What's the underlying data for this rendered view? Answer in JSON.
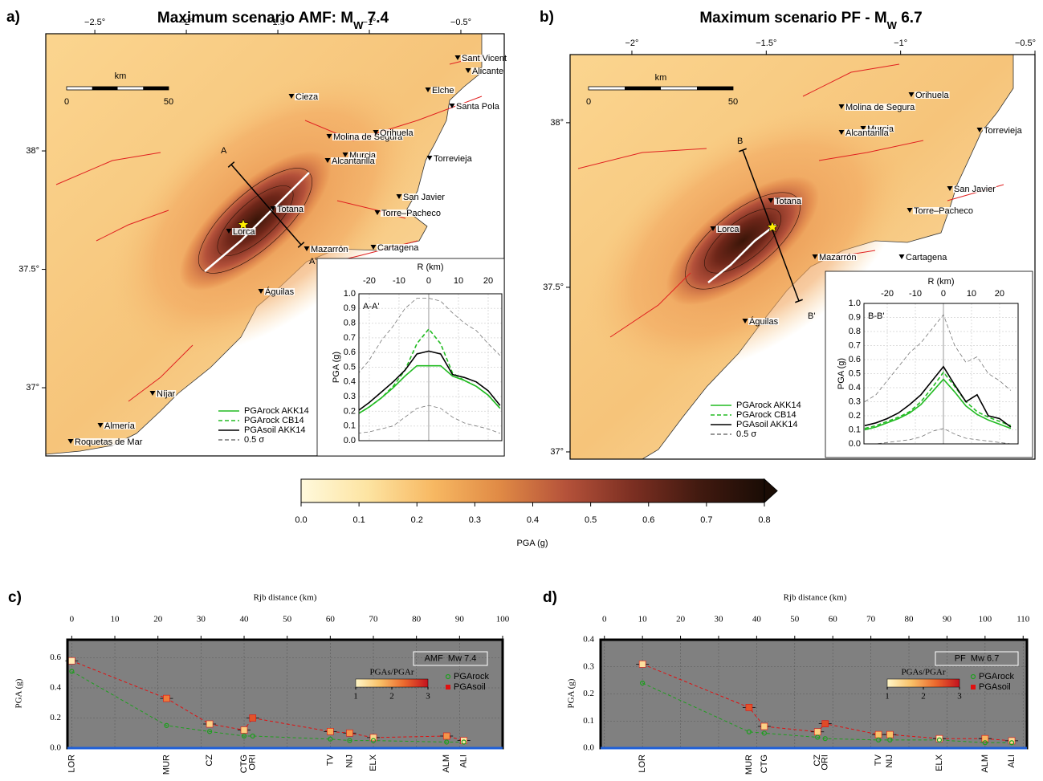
{
  "chart_data": [
    {
      "type": "map",
      "panel": "a)",
      "title": [
        "Maximum scenario AMF: M",
        "W",
        " 7.4"
      ],
      "xlim": [
        -2.768,
        -0.263
      ],
      "ylim": [
        36.712,
        38.495
      ],
      "xticks": [
        {
          "value": -2.5,
          "label": "−2.5°"
        },
        {
          "value": -2,
          "label": "−2°"
        },
        {
          "value": -1.5,
          "label": "−1.5°"
        },
        {
          "value": -1,
          "label": "−1°"
        },
        {
          "value": -0.5,
          "label": "−0.5°"
        }
      ],
      "yticks": [
        {
          "value": 38,
          "label": "38°"
        },
        {
          "value": 37.5,
          "label": "37.5°"
        },
        {
          "value": 37,
          "label": "37°"
        }
      ],
      "places": [
        "Sant Vicent",
        "Alicante",
        "Elche",
        "Santa Pola",
        "Cieza",
        "Molina de Segura",
        "Orihuela",
        "Murcia",
        "Alcantarilla",
        "Torrevieja",
        "San Javier",
        "Totana",
        "Lorca",
        "Torre–Pacheco",
        "Mazarrón",
        "Cartagena",
        "Águilas",
        "Níjar",
        "Almería",
        "Roquetas de Mar"
      ],
      "scalebar": {
        "unit": "km",
        "ticks": [
          0,
          50
        ]
      },
      "profile": [
        "A",
        "A'"
      ]
    },
    {
      "type": "line",
      "label": "A-A'",
      "xlabel": "R (km)",
      "ylabel": "PGA (g)",
      "x": [
        -24,
        -20,
        -16,
        -12,
        -8,
        -4,
        0,
        4,
        8,
        12,
        16,
        20,
        24
      ],
      "xlim": [
        -23.5,
        24.6
      ],
      "ylim": [
        0,
        1
      ],
      "xticks": [
        -20,
        -10,
        0,
        10,
        20
      ],
      "yticks": [
        {
          "value": 0,
          "label": "0.0"
        },
        0.1,
        0.2,
        0.3,
        0.4,
        0.5,
        0.6,
        0.7,
        0.8,
        0.9,
        {
          "value": 1,
          "label": "1.0"
        }
      ],
      "series": [
        {
          "name": "PGArock AKK14",
          "color": "#22bb22",
          "dashed": false,
          "values": [
            0.18,
            0.23,
            0.29,
            0.36,
            0.44,
            0.51,
            0.51,
            0.51,
            0.44,
            0.41,
            0.37,
            0.31,
            0.22
          ]
        },
        {
          "name": "PGArock CB14",
          "color": "#22bb22",
          "dashed": true,
          "values": [
            0.18,
            0.23,
            0.29,
            0.37,
            0.48,
            0.66,
            0.76,
            0.66,
            0.46,
            0.41,
            0.37,
            0.31,
            0.22
          ]
        },
        {
          "name": "PGAsoil AKK14",
          "color": "#000000",
          "dashed": false,
          "values": [
            0.2,
            0.26,
            0.33,
            0.4,
            0.48,
            0.59,
            0.61,
            0.59,
            0.45,
            0.43,
            0.4,
            0.34,
            0.24
          ]
        },
        {
          "name": "0.5 σ",
          "color": "#777777",
          "dashed": true,
          "upper": [
            0.45,
            0.55,
            0.68,
            0.78,
            0.9,
            0.97,
            0.97,
            0.95,
            0.87,
            0.8,
            0.75,
            0.66,
            0.58
          ],
          "lower": [
            0.05,
            0.06,
            0.08,
            0.1,
            0.16,
            0.22,
            0.24,
            0.22,
            0.16,
            0.12,
            0.1,
            0.08,
            0.05
          ]
        }
      ]
    },
    {
      "type": "map",
      "panel": "b)",
      "title": [
        "Maximum scenario PF - M",
        "W",
        " 6.7"
      ],
      "xlim": [
        -2.23,
        -0.5
      ],
      "ylim": [
        36.978,
        38.207
      ],
      "xticks": [
        {
          "value": -2,
          "label": "−2°"
        },
        {
          "value": -1.5,
          "label": "−1.5°"
        },
        {
          "value": -1,
          "label": "−1°"
        },
        {
          "value": -0.5,
          "label": "−0.5°"
        }
      ],
      "yticks": [
        {
          "value": 38,
          "label": "38°"
        },
        {
          "value": 37.5,
          "label": "37.5°"
        },
        {
          "value": 37,
          "label": "37°"
        }
      ],
      "places": [
        "Orihuela",
        "Molina de Segura",
        "Murcia",
        "Alcantarilla",
        "Torrevieja",
        "San Javier",
        "Totana",
        "Torre–Pacheco",
        "Lorca",
        "Mazarrón",
        "Cartagena",
        "Águilas"
      ],
      "scalebar": {
        "unit": "km",
        "ticks": [
          0,
          50
        ]
      },
      "profile": [
        "B",
        "B'"
      ]
    },
    {
      "type": "line",
      "label": "B-B'",
      "xlabel": "R (km)",
      "ylabel": "PGA (g)",
      "x": [
        -28,
        -24,
        -20,
        -16,
        -12,
        -8,
        -4,
        0,
        4,
        8,
        12,
        16,
        20,
        24
      ],
      "xlim": [
        -28.3,
        26.6
      ],
      "ylim": [
        0,
        1
      ],
      "xticks": [
        -20,
        -10,
        0,
        10,
        20
      ],
      "yticks": [
        {
          "value": 0,
          "label": "0.0"
        },
        0.1,
        0.2,
        0.3,
        0.4,
        0.5,
        0.6,
        0.7,
        0.8,
        0.9,
        {
          "value": 1,
          "label": "1.0"
        }
      ],
      "series": [
        {
          "name": "PGArock AKK14",
          "color": "#22bb22",
          "dashed": false,
          "values": [
            0.1,
            0.12,
            0.15,
            0.18,
            0.22,
            0.28,
            0.37,
            0.46,
            0.37,
            0.27,
            0.21,
            0.17,
            0.14,
            0.11
          ]
        },
        {
          "name": "PGArock CB14",
          "color": "#22bb22",
          "dashed": true,
          "values": [
            0.11,
            0.13,
            0.16,
            0.19,
            0.23,
            0.3,
            0.4,
            0.51,
            0.41,
            0.3,
            0.23,
            0.19,
            0.16,
            0.13
          ]
        },
        {
          "name": "PGAsoil AKK14",
          "color": "#000000",
          "dashed": false,
          "values": [
            0.13,
            0.15,
            0.18,
            0.22,
            0.28,
            0.35,
            0.45,
            0.55,
            0.42,
            0.3,
            0.35,
            0.2,
            0.18,
            0.12
          ]
        },
        {
          "name": "0.5 σ",
          "color": "#777777",
          "dashed": true,
          "upper": [
            0.3,
            0.35,
            0.45,
            0.55,
            0.65,
            0.72,
            0.82,
            0.92,
            0.7,
            0.58,
            0.62,
            0.5,
            0.45,
            0.38
          ],
          "lower": [
            0,
            0,
            0.01,
            0.02,
            0.03,
            0.05,
            0.09,
            0.11,
            0.07,
            0.04,
            0.03,
            0.02,
            0.01,
            0
          ]
        }
      ]
    },
    {
      "type": "colorbar",
      "label": "PGA (g)",
      "lim": [
        0,
        0.8
      ],
      "ticks": [
        {
          "value": 0,
          "label": "0.0"
        },
        0.1,
        0.2,
        0.3,
        0.4,
        0.5,
        0.6,
        0.7,
        0.8
      ],
      "colors": [
        "#fff9dc",
        "#fde4a2",
        "#f7b862",
        "#e08a45",
        "#b5523a",
        "#7c2f22",
        "#421a10",
        "#1a0c05"
      ]
    },
    {
      "type": "scatter",
      "panel": "c)",
      "xlabel": "Rjb distance (km)",
      "ylabel": "PGA (g)",
      "annotation": "AMF  Mw 7.4",
      "categories": [
        "LOR",
        "MUR",
        "CZ",
        "CTG",
        "ORI",
        "TV",
        "NIJ",
        "ELX",
        "ALM",
        "ALI"
      ],
      "x": [
        0,
        22,
        32,
        40,
        42,
        60,
        64.5,
        70,
        87,
        91
      ],
      "xlim": [
        -1,
        100
      ],
      "ylim": [
        0,
        0.72
      ],
      "xticks": [
        0,
        10,
        20,
        30,
        40,
        50,
        60,
        70,
        80,
        90,
        100
      ],
      "yticks": [
        {
          "value": 0,
          "label": "0.0"
        },
        0.2,
        0.4,
        0.6
      ],
      "series": [
        {
          "name": "PGArock",
          "color": "#1e9e1e",
          "values": [
            0.51,
            0.15,
            0.11,
            0.08,
            0.08,
            0.06,
            0.05,
            0.05,
            0.04,
            0.04
          ]
        },
        {
          "name": "PGAsoil",
          "color": "#e01010",
          "values": [
            0.58,
            0.33,
            0.16,
            0.12,
            0.2,
            0.11,
            0.1,
            0.07,
            0.08,
            0.05
          ]
        }
      ],
      "ratio_bar": {
        "label": "PGAs/PGAr",
        "lim": [
          1,
          3
        ],
        "ticks": [
          1,
          2,
          3
        ],
        "colors": [
          "#fff6c8",
          "#f9c168",
          "#ec6a2e",
          "#c4121e"
        ]
      }
    },
    {
      "type": "scatter",
      "panel": "d)",
      "xlabel": "Rjb distance (km)",
      "ylabel": "PGA (g)",
      "annotation": "PF  Mw 6.7",
      "categories": [
        "LOR",
        "MUR",
        "CTG",
        "CZ",
        "ORI",
        "TV",
        "NIJ",
        "ELX",
        "ALM",
        "ALI"
      ],
      "x": [
        10,
        38,
        42,
        56,
        58,
        72,
        75,
        88,
        100,
        107
      ],
      "xlim": [
        -1,
        111
      ],
      "ylim": [
        0,
        0.4
      ],
      "xticks": [
        0,
        10,
        20,
        30,
        40,
        50,
        60,
        70,
        80,
        90,
        100,
        110
      ],
      "yticks": [
        {
          "value": 0,
          "label": "0.0"
        },
        0.1,
        0.2,
        0.3,
        0.4
      ],
      "series": [
        {
          "name": "PGArock",
          "color": "#1e9e1e",
          "values": [
            0.24,
            0.06,
            0.055,
            0.04,
            0.035,
            0.03,
            0.03,
            0.03,
            0.02,
            0.02
          ]
        },
        {
          "name": "PGAsoil",
          "color": "#e01010",
          "values": [
            0.31,
            0.15,
            0.08,
            0.06,
            0.09,
            0.05,
            0.05,
            0.035,
            0.035,
            0.027
          ]
        }
      ],
      "ratio_bar": {
        "label": "PGAs/PGAr",
        "lim": [
          1,
          3
        ],
        "ticks": [
          1,
          2,
          3
        ],
        "colors": [
          "#fff6c8",
          "#f9c168",
          "#ec6a2e",
          "#c4121e"
        ]
      }
    }
  ]
}
